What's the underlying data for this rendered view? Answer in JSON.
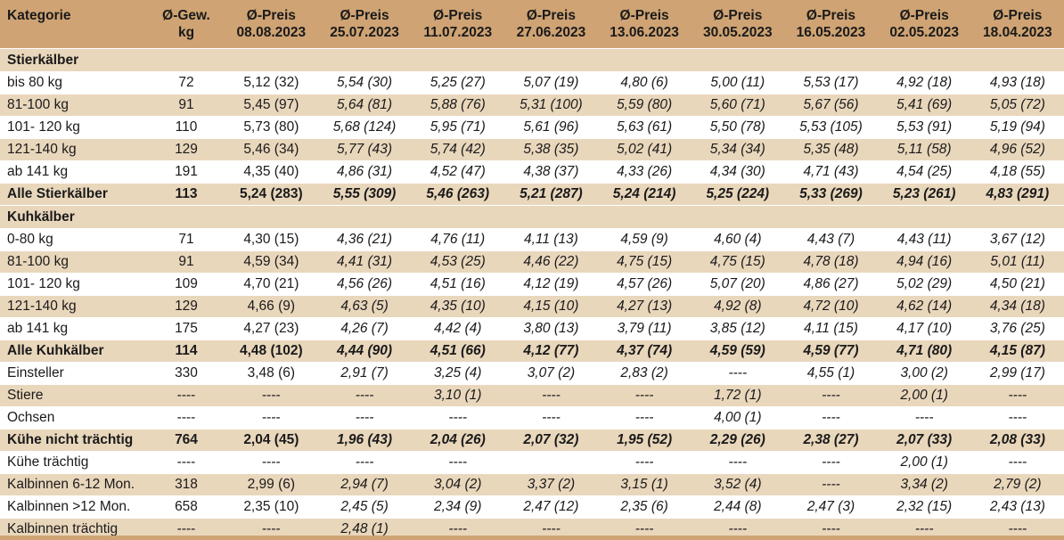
{
  "headers": [
    [
      "Kategorie",
      ""
    ],
    [
      "Ø-Gew.",
      "kg"
    ],
    [
      "Ø-Preis",
      "08.08.2023"
    ],
    [
      "Ø-Preis",
      "25.07.2023"
    ],
    [
      "Ø-Preis",
      "11.07.2023"
    ],
    [
      "Ø-Preis",
      "27.06.2023"
    ],
    [
      "Ø-Preis",
      "13.06.2023"
    ],
    [
      "Ø-Preis",
      "30.05.2023"
    ],
    [
      "Ø-Preis",
      "16.05.2023"
    ],
    [
      "Ø-Preis",
      "02.05.2023"
    ],
    [
      "Ø-Preis",
      "18.04.2023"
    ]
  ],
  "rows": [
    {
      "type": "section",
      "cells": [
        "Stierkälber",
        "",
        "",
        "",
        "",
        "",
        "",
        "",
        "",
        "",
        ""
      ]
    },
    {
      "type": "data",
      "cells": [
        "bis 80 kg",
        "72",
        "5,12 (32)",
        "5,54 (30)",
        "5,25 (27)",
        "5,07 (19)",
        "4,80 (6)",
        "5,00 (11)",
        "5,53 (17)",
        "4,92 (18)",
        "4,93 (18)"
      ]
    },
    {
      "type": "data",
      "cells": [
        "81-100 kg",
        "91",
        "5,45 (97)",
        "5,64 (81)",
        "5,88 (76)",
        "5,31 (100)",
        "5,59 (80)",
        "5,60 (71)",
        "5,67 (56)",
        "5,41 (69)",
        "5,05 (72)"
      ]
    },
    {
      "type": "data",
      "cells": [
        "101- 120 kg",
        "110",
        "5,73 (80)",
        "5,68 (124)",
        "5,95 (71)",
        "5,61 (96)",
        "5,63 (61)",
        "5,50 (78)",
        "5,53 (105)",
        "5,53 (91)",
        "5,19 (94)"
      ]
    },
    {
      "type": "data",
      "cells": [
        "121-140 kg",
        "129",
        "5,46 (34)",
        "5,77 (43)",
        "5,74 (42)",
        "5,38 (35)",
        "5,02 (41)",
        "5,34 (34)",
        "5,35 (48)",
        "5,11 (58)",
        "4,96 (52)"
      ]
    },
    {
      "type": "data",
      "cells": [
        "ab 141 kg",
        "191",
        "4,35 (40)",
        "4,86 (31)",
        "4,52 (47)",
        "4,38 (37)",
        "4,33 (26)",
        "4,34 (30)",
        "4,71 (43)",
        "4,54 (25)",
        "4,18 (55)"
      ]
    },
    {
      "type": "total",
      "cells": [
        "Alle Stierkälber",
        "113",
        "5,24 (283)",
        "5,55 (309)",
        "5,46 (263)",
        "5,21 (287)",
        "5,24 (214)",
        "5,25 (224)",
        "5,33 (269)",
        "5,23 (261)",
        "4,83 (291)"
      ]
    },
    {
      "type": "section",
      "cells": [
        "Kuhkälber",
        "",
        "",
        "",
        "",
        "",
        "",
        "",
        "",
        "",
        ""
      ]
    },
    {
      "type": "data",
      "cells": [
        "0-80 kg",
        "71",
        "4,30 (15)",
        "4,36 (21)",
        "4,76 (11)",
        "4,11 (13)",
        "4,59 (9)",
        "4,60 (4)",
        "4,43 (7)",
        "4,43 (11)",
        "3,67 (12)"
      ]
    },
    {
      "type": "data",
      "cells": [
        "81-100 kg",
        "91",
        "4,59 (34)",
        "4,41 (31)",
        "4,53 (25)",
        "4,46 (22)",
        "4,75 (15)",
        "4,75 (15)",
        "4,78 (18)",
        "4,94 (16)",
        "5,01 (11)"
      ]
    },
    {
      "type": "data",
      "cells": [
        "101- 120 kg",
        "109",
        "4,70 (21)",
        "4,56 (26)",
        "4,51 (16)",
        "4,12 (19)",
        "4,57 (26)",
        "5,07 (20)",
        "4,86 (27)",
        "5,02 (29)",
        "4,50 (21)"
      ]
    },
    {
      "type": "data",
      "cells": [
        "121-140 kg",
        "129",
        "4,66 (9)",
        "4,63 (5)",
        "4,35 (10)",
        "4,15 (10)",
        "4,27 (13)",
        "4,92 (8)",
        "4,72 (10)",
        "4,62 (14)",
        "4,34 (18)"
      ]
    },
    {
      "type": "data",
      "cells": [
        "ab 141 kg",
        "175",
        "4,27 (23)",
        "4,26 (7)",
        "4,42 (4)",
        "3,80 (13)",
        "3,79 (11)",
        "3,85 (12)",
        "4,11 (15)",
        "4,17 (10)",
        "3,76 (25)"
      ]
    },
    {
      "type": "total",
      "cells": [
        "Alle Kuhkälber",
        "114",
        "4,48 (102)",
        "4,44 (90)",
        "4,51 (66)",
        "4,12 (77)",
        "4,37 (74)",
        "4,59 (59)",
        "4,59 (77)",
        "4,71 (80)",
        "4,15 (87)"
      ]
    },
    {
      "type": "data",
      "cells": [
        "Einsteller",
        "330",
        "3,48 (6)",
        "2,91 (7)",
        "3,25 (4)",
        "3,07 (2)",
        "2,83 (2)",
        "----",
        "4,55 (1)",
        "3,00 (2)",
        "2,99 (17)"
      ]
    },
    {
      "type": "data",
      "cells": [
        "Stiere",
        "----",
        "----",
        "----",
        "3,10 (1)",
        "----",
        "----",
        "1,72 (1)",
        "----",
        "2,00 (1)",
        "----"
      ]
    },
    {
      "type": "data",
      "cells": [
        "Ochsen",
        "----",
        "----",
        "----",
        "----",
        "----",
        "----",
        "4,00 (1)",
        "----",
        "----",
        "----"
      ]
    },
    {
      "type": "total",
      "cells": [
        "Kühe nicht trächtig",
        "764",
        "2,04 (45)",
        "1,96 (43)",
        "2,04 (26)",
        "2,07 (32)",
        "1,95 (52)",
        "2,29 (26)",
        "2,38 (27)",
        "2,07 (33)",
        "2,08 (33)"
      ]
    },
    {
      "type": "data",
      "cells": [
        "Kühe trächtig",
        "----",
        "----",
        "----",
        "----",
        "",
        "----",
        "----",
        "----",
        "2,00 (1)",
        "----"
      ]
    },
    {
      "type": "data",
      "cells": [
        "Kalbinnen 6-12 Mon.",
        "318",
        "2,99 (6)",
        "2,94 (7)",
        "3,04 (2)",
        "3,37 (2)",
        "3,15 (1)",
        "3,52 (4)",
        "----",
        "3,34 (2)",
        "2,79 (2)"
      ]
    },
    {
      "type": "data",
      "cells": [
        "Kalbinnen >12 Mon.",
        "658",
        "2,35 (10)",
        "2,45 (5)",
        "2,34 (9)",
        "2,47 (12)",
        "2,35 (6)",
        "2,44 (8)",
        "2,47 (3)",
        "2,32 (15)",
        "2,43 (13)"
      ]
    },
    {
      "type": "data",
      "cells": [
        "Kalbinnen trächtig",
        "----",
        "----",
        "2,48 (1)",
        "----",
        "----",
        "----",
        "----",
        "----",
        "----",
        "----"
      ]
    }
  ]
}
